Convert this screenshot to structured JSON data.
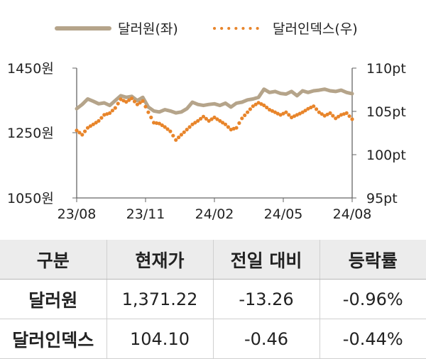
{
  "chart_data": {
    "type": "line",
    "legend": {
      "placement": "top",
      "entries": [
        "달러원(좌)",
        "달러인덱스(우)"
      ]
    },
    "colors": {
      "usdkrw": "#b5a48a",
      "dxy": "#e8852b"
    },
    "x_ticks": [
      "23/08",
      "23/11",
      "24/02",
      "24/05",
      "24/08"
    ],
    "x_range": [
      "2023-08",
      "2024-08"
    ],
    "y_left": {
      "ticks": [
        "1450원",
        "1250원",
        "1050원"
      ],
      "tick_values": [
        1450,
        1250,
        1050
      ],
      "range": [
        1050,
        1450
      ]
    },
    "y_right": {
      "ticks": [
        "110pt",
        "105pt",
        "100pt",
        "95pt"
      ],
      "tick_values": [
        110,
        105,
        100,
        95
      ],
      "range": [
        95,
        110
      ]
    },
    "grid": false,
    "series": [
      {
        "name": "달러원(좌)",
        "axis": "left",
        "style": "solid",
        "x": [
          0,
          0.02,
          0.04,
          0.06,
          0.08,
          0.1,
          0.12,
          0.14,
          0.16,
          0.18,
          0.2,
          0.22,
          0.24,
          0.26,
          0.28,
          0.3,
          0.32,
          0.34,
          0.36,
          0.38,
          0.4,
          0.42,
          0.44,
          0.46,
          0.48,
          0.5,
          0.52,
          0.54,
          0.56,
          0.58,
          0.6,
          0.62,
          0.64,
          0.66,
          0.68,
          0.7,
          0.72,
          0.74,
          0.76,
          0.78,
          0.8,
          0.82,
          0.84,
          0.86,
          0.88,
          0.9,
          0.92,
          0.94,
          0.96,
          0.98,
          1.0
        ],
        "values": [
          1325,
          1338,
          1355,
          1348,
          1340,
          1343,
          1335,
          1350,
          1365,
          1360,
          1363,
          1350,
          1360,
          1330,
          1318,
          1315,
          1322,
          1318,
          1312,
          1315,
          1325,
          1345,
          1338,
          1335,
          1338,
          1340,
          1335,
          1342,
          1330,
          1342,
          1345,
          1352,
          1355,
          1360,
          1385,
          1375,
          1378,
          1372,
          1370,
          1378,
          1365,
          1380,
          1375,
          1380,
          1382,
          1385,
          1380,
          1378,
          1382,
          1375,
          1371
        ]
      },
      {
        "name": "달러인덱스(우)",
        "axis": "right",
        "style": "dotted",
        "x": [
          0,
          0.02,
          0.04,
          0.06,
          0.08,
          0.1,
          0.12,
          0.14,
          0.16,
          0.18,
          0.2,
          0.22,
          0.24,
          0.26,
          0.28,
          0.3,
          0.32,
          0.34,
          0.36,
          0.38,
          0.4,
          0.42,
          0.44,
          0.46,
          0.48,
          0.5,
          0.52,
          0.54,
          0.56,
          0.58,
          0.6,
          0.62,
          0.64,
          0.66,
          0.68,
          0.7,
          0.72,
          0.74,
          0.76,
          0.78,
          0.8,
          0.82,
          0.84,
          0.86,
          0.88,
          0.9,
          0.92,
          0.94,
          0.96,
          0.98,
          1.0
        ],
        "values": [
          102.8,
          102.3,
          103.1,
          103.5,
          103.9,
          104.6,
          104.8,
          105.4,
          106.4,
          106.1,
          106.5,
          105.8,
          106.2,
          104.9,
          103.7,
          103.6,
          103.2,
          102.7,
          101.7,
          102.3,
          102.9,
          103.5,
          103.9,
          104.4,
          103.9,
          104.3,
          103.9,
          103.5,
          102.9,
          103.1,
          104.2,
          104.9,
          105.6,
          106.0,
          105.7,
          105.2,
          104.9,
          104.6,
          104.9,
          104.3,
          104.6,
          104.9,
          105.3,
          105.6,
          104.9,
          104.5,
          104.8,
          104.2,
          104.6,
          104.8,
          104.1
        ]
      }
    ]
  },
  "table": {
    "headers": [
      "구분",
      "현재가",
      "전일 대비",
      "등락률"
    ],
    "rows": [
      [
        "달러원",
        "1,371.22",
        "-13.26",
        "-0.96%"
      ],
      [
        "달러인덱스",
        "104.10",
        "-0.46",
        "-0.44%"
      ]
    ]
  }
}
